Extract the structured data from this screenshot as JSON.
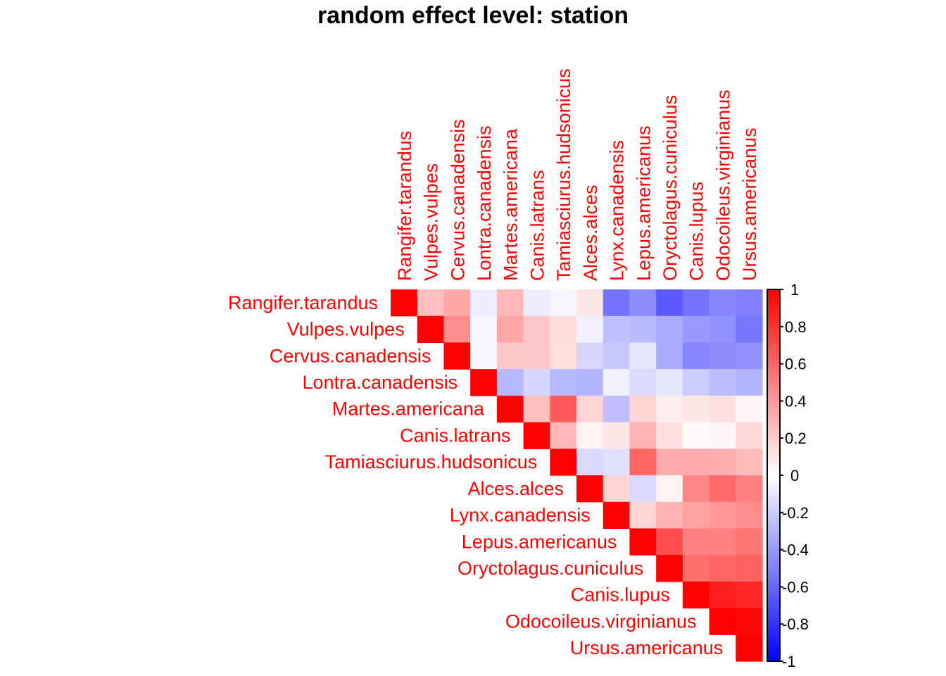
{
  "chart_data": {
    "type": "heatmap",
    "subtype": "correlation-upper-triangle",
    "title": "random effect level: station",
    "xlabel": "",
    "ylabel": "",
    "variables": [
      "Rangifer.tarandus",
      "Vulpes.vulpes",
      "Cervus.canadensis",
      "Lontra.canadensis",
      "Martes.americana",
      "Canis.latrans",
      "Tamiasciurus.hudsonicus",
      "Alces.alces",
      "Lynx.canadensis",
      "Lepus.americanus",
      "Oryctolagus.cuniculus",
      "Canis.lupus",
      "Odocoileus.virginianus",
      "Ursus.americanus"
    ],
    "matrix": [
      [
        1,
        0.25,
        0.35,
        -0.07,
        0.28,
        -0.07,
        -0.03,
        0.1,
        -0.55,
        -0.45,
        -0.65,
        -0.55,
        -0.47,
        -0.5
      ],
      [
        null,
        1,
        0.45,
        -0.03,
        0.35,
        0.22,
        0.14,
        -0.06,
        -0.25,
        -0.27,
        -0.33,
        -0.4,
        -0.43,
        -0.53
      ],
      [
        null,
        null,
        1,
        -0.03,
        0.22,
        0.22,
        0.13,
        -0.16,
        -0.22,
        -0.1,
        -0.33,
        -0.47,
        -0.45,
        -0.43
      ],
      [
        null,
        null,
        null,
        1,
        -0.28,
        -0.16,
        -0.28,
        -0.3,
        -0.05,
        -0.14,
        -0.1,
        -0.2,
        -0.26,
        -0.3
      ],
      [
        null,
        null,
        null,
        null,
        1,
        0.25,
        0.65,
        0.17,
        -0.25,
        0.17,
        0.07,
        0.1,
        0.12,
        0.03
      ],
      [
        null,
        null,
        null,
        null,
        null,
        1,
        0.28,
        0.05,
        0.1,
        0.3,
        0.12,
        0.02,
        0.03,
        0.15
      ],
      [
        null,
        null,
        null,
        null,
        null,
        null,
        1,
        -0.15,
        -0.12,
        0.6,
        0.33,
        0.33,
        0.32,
        0.27
      ],
      [
        null,
        null,
        null,
        null,
        null,
        null,
        null,
        1,
        0.17,
        -0.15,
        0.05,
        0.47,
        0.58,
        0.5
      ],
      [
        null,
        null,
        null,
        null,
        null,
        null,
        null,
        null,
        1,
        0.17,
        0.3,
        0.37,
        0.4,
        0.45
      ],
      [
        null,
        null,
        null,
        null,
        null,
        null,
        null,
        null,
        null,
        1,
        0.7,
        0.5,
        0.5,
        0.55
      ],
      [
        null,
        null,
        null,
        null,
        null,
        null,
        null,
        null,
        null,
        null,
        1,
        0.57,
        0.6,
        0.62
      ],
      [
        null,
        null,
        null,
        null,
        null,
        null,
        null,
        null,
        null,
        null,
        null,
        1,
        0.88,
        0.85
      ],
      [
        null,
        null,
        null,
        null,
        null,
        null,
        null,
        null,
        null,
        null,
        null,
        null,
        1,
        0.97
      ],
      [
        null,
        null,
        null,
        null,
        null,
        null,
        null,
        null,
        null,
        null,
        null,
        null,
        null,
        1
      ]
    ],
    "colorbar": {
      "range": [
        -1,
        1
      ],
      "ticks": [
        1,
        0.8,
        0.6,
        0.4,
        0.2,
        0,
        -0.2,
        -0.4,
        -0.6,
        -0.8,
        -1
      ],
      "tick_labels": [
        "1",
        "0.8",
        "0.6",
        "0.4",
        "0.2",
        "0",
        "-0.2",
        "-0.4",
        "-0.6",
        "-0.8",
        "-1"
      ],
      "low_color": "#0000ff",
      "mid_color": "#ffffff",
      "high_color": "#ff0000",
      "placement": "right"
    },
    "label_color": "#ff0000",
    "grid": false,
    "legend": "colorbar-right"
  }
}
